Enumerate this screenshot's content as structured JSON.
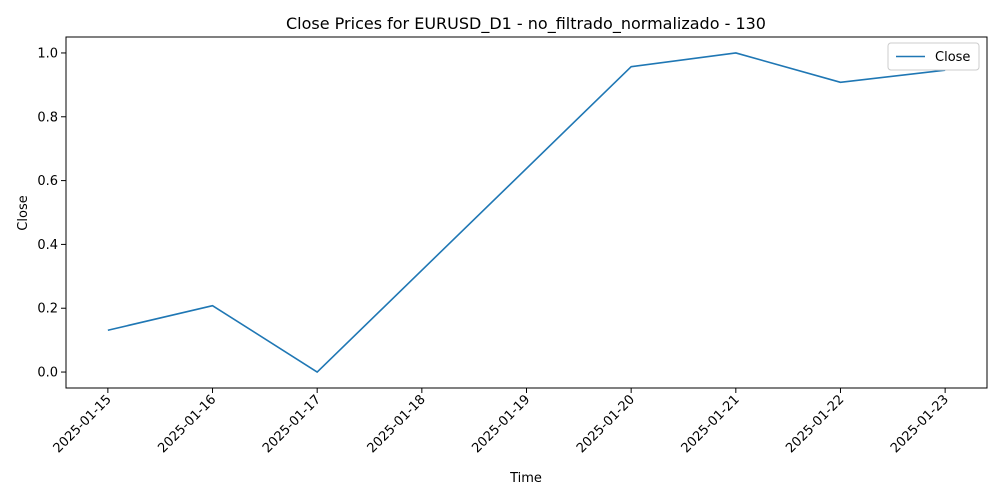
{
  "chart_data": {
    "type": "line",
    "title": "Close Prices for EURUSD_D1 - no_filtrado_normalizado - 130",
    "xlabel": "Time",
    "ylabel": "Close",
    "x": [
      "2025-01-15",
      "2025-01-16",
      "2025-01-17",
      "2025-01-20",
      "2025-01-21",
      "2025-01-22",
      "2025-01-23"
    ],
    "x_ticks": [
      "2025-01-15",
      "2025-01-16",
      "2025-01-17",
      "2025-01-18",
      "2025-01-19",
      "2025-01-20",
      "2025-01-21",
      "2025-01-22",
      "2025-01-23"
    ],
    "y_ticks": [
      "0.0",
      "0.2",
      "0.4",
      "0.6",
      "0.8",
      "1.0"
    ],
    "ylim": [
      -0.05,
      1.05
    ],
    "xlim": [
      "2025-01-14 14:24",
      "2025-01-23 09:36"
    ],
    "grid": false,
    "legend_position": "top-right",
    "series": [
      {
        "name": "Close",
        "color": "#1f77b4",
        "values": [
          0.131,
          0.208,
          0.0,
          0.957,
          1.0,
          0.908,
          0.946
        ]
      }
    ]
  }
}
